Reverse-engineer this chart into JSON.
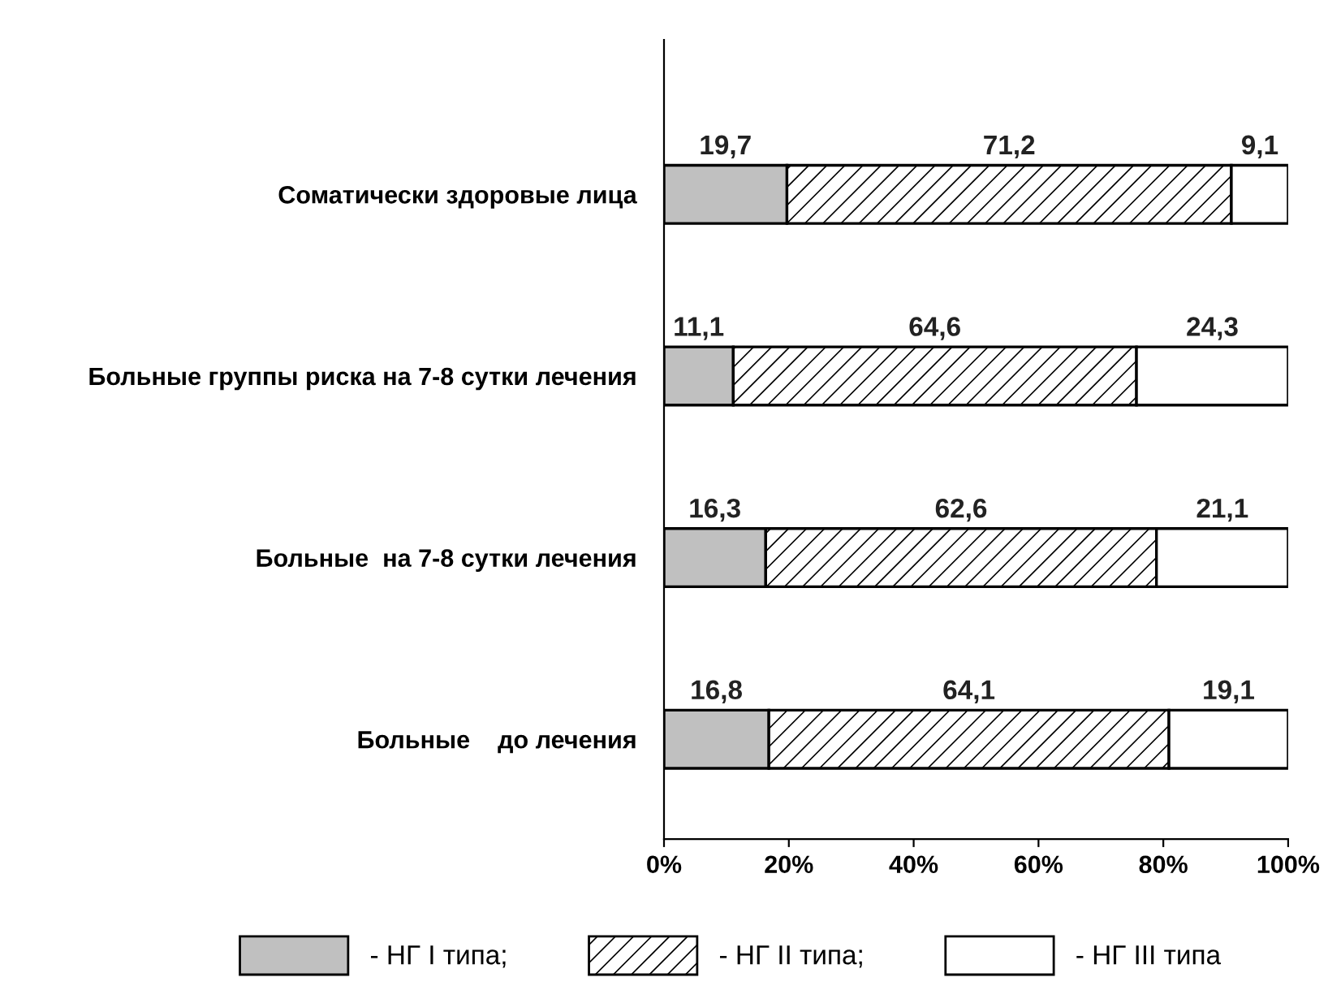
{
  "chart_data": {
    "type": "bar",
    "orientation": "horizontal",
    "stacked": true,
    "categories": [
      "Соматически здоровые лица",
      "Больные группы риска на 7-8 сутки лечения",
      "Больные  на 7-8 сутки лечения",
      "Больные    до лечения"
    ],
    "series": [
      {
        "name": "- НГ I типа;",
        "color": "#c0c0c0",
        "values": [
          19.7,
          11.1,
          16.3,
          16.8
        ],
        "value_labels": [
          "19,7",
          "11,1",
          "16,3",
          "16,8"
        ]
      },
      {
        "name": "- НГ II типа;",
        "color": "#000000",
        "values": [
          71.2,
          64.6,
          62.6,
          64.1
        ],
        "value_labels": [
          "71,2",
          "64,6",
          "62,6",
          "64,1"
        ]
      },
      {
        "name": "- НГ III типа",
        "color": "#ffffff",
        "values": [
          9.1,
          24.3,
          21.1,
          19.1
        ],
        "value_labels": [
          "9,1",
          "24,3",
          "21,1",
          "19,1"
        ]
      }
    ],
    "xlim": [
      0,
      100
    ],
    "xticks": [
      {
        "value": 0,
        "label": "0%"
      },
      {
        "value": 20,
        "label": "20%"
      },
      {
        "value": 40,
        "label": "40%"
      },
      {
        "value": 60,
        "label": "60%"
      },
      {
        "value": 80,
        "label": "80%"
      },
      {
        "value": 100,
        "label": "100%"
      }
    ],
    "grid": false,
    "legend": "bottom"
  }
}
